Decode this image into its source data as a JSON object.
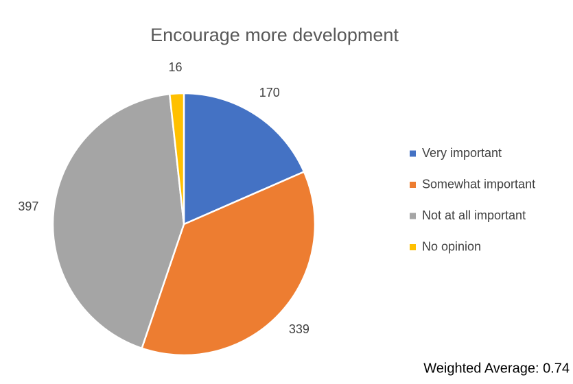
{
  "chart_data": {
    "type": "pie",
    "title": "Encourage more development",
    "categories": [
      "Very important",
      "Somewhat important",
      "Not at all important",
      "No opinion"
    ],
    "values": [
      170,
      339,
      397,
      16
    ],
    "colors": [
      "#4472c4",
      "#ed7d31",
      "#a5a5a5",
      "#ffc000"
    ],
    "legend": "right",
    "annotation": "Weighted Average: 0.74"
  }
}
